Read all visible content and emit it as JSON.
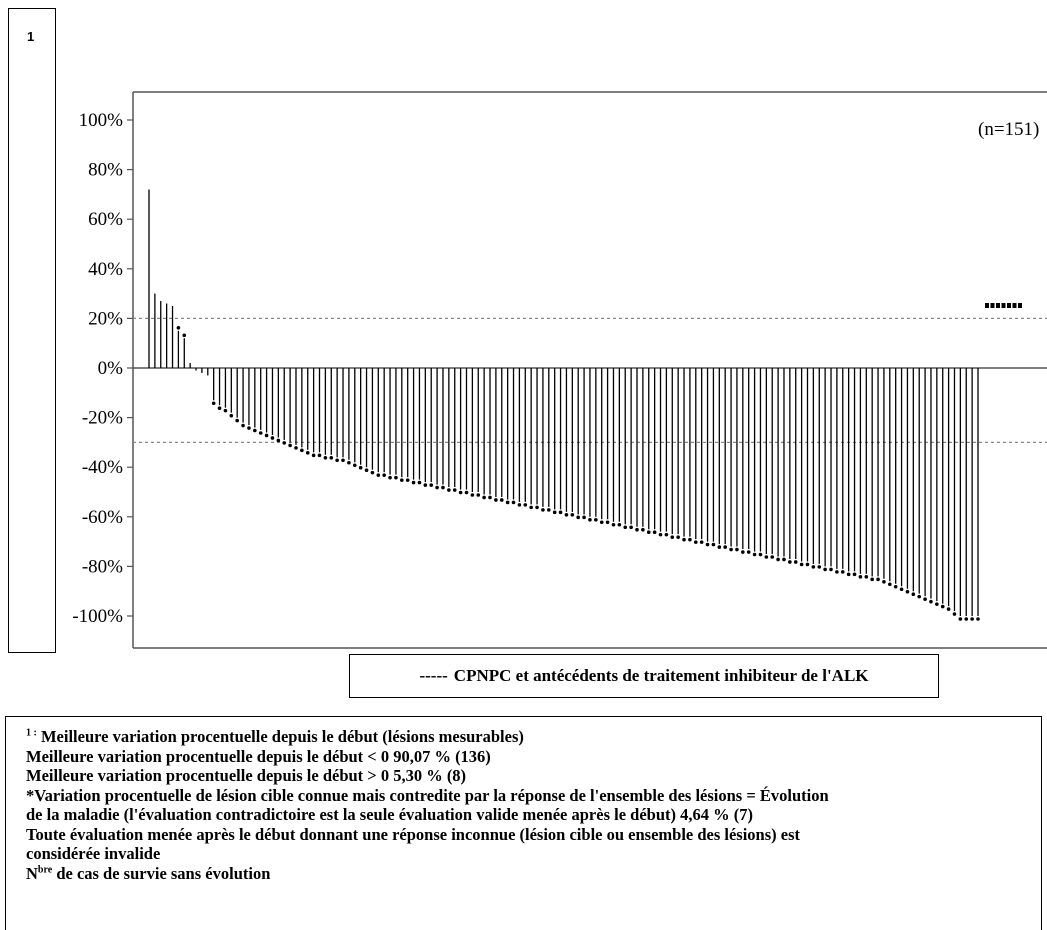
{
  "figure_number": "1",
  "legend_text": "CPNPC et antécédents de traitement inhibiteur de l'ALK",
  "legend_dash": "-----",
  "footnote": {
    "marker": "1 :",
    "line1": "Meilleure variation procentuelle depuis le début (lésions mesurables)",
    "line2": "Meilleure variation procentuelle depuis le début < 0 90,07 % (136)",
    "line3": "Meilleure variation procentuelle depuis le début > 0 5,30 % (8)",
    "line4": "*Variation procentuelle de lésion cible connue mais contredite par la réponse de l'ensemble des lésions = Évolution",
    "line5": "de la maladie (l'évaluation contradictoire est la seule évaluation valide menée après le début)  4,64 % (7)",
    "line6": "Toute évaluation menée après le début donnant une réponse inconnue (lésion cible ou ensemble des lésions) est",
    "line7": "considérée invalide",
    "line8_prefix": "N",
    "line8_sup": "bre",
    "line8_rest": " de cas de survie sans évolution"
  },
  "chart_data": {
    "type": "bar",
    "title": "",
    "annotation": "(n=151)",
    "xlabel": "",
    "ylabel": "",
    "ylim": [
      -115,
      110
    ],
    "yticks": [
      "100%",
      "80%",
      "60%",
      "40%",
      "20%",
      "0%",
      "-20%",
      "-40%",
      "-60%",
      "-80%",
      "-100%"
    ],
    "ytick_values": [
      100,
      80,
      60,
      40,
      20,
      0,
      -20,
      -40,
      -60,
      -80,
      -100
    ],
    "reference_lines": [
      20,
      -30
    ],
    "grid": false,
    "bar_color": "#000000",
    "values": [
      72,
      30,
      27,
      26,
      25,
      15,
      12,
      2,
      -1,
      -2,
      -3,
      -13,
      -15,
      -16,
      -18,
      -20,
      -22,
      -23,
      -24,
      -25,
      -26,
      -27,
      -28,
      -29,
      -30,
      -31,
      -32,
      -33,
      -34,
      -34,
      -35,
      -35,
      -36,
      -36,
      -37,
      -38,
      -39,
      -40,
      -41,
      -42,
      -42,
      -43,
      -43,
      -44,
      -44,
      -45,
      -45,
      -46,
      -46,
      -47,
      -47,
      -48,
      -48,
      -49,
      -49,
      -50,
      -50,
      -51,
      -51,
      -52,
      -52,
      -53,
      -53,
      -54,
      -54,
      -55,
      -55,
      -56,
      -56,
      -57,
      -57,
      -58,
      -58,
      -59,
      -59,
      -60,
      -60,
      -61,
      -61,
      -62,
      -62,
      -63,
      -63,
      -64,
      -64,
      -65,
      -65,
      -66,
      -66,
      -67,
      -67,
      -68,
      -68,
      -69,
      -69,
      -70,
      -70,
      -71,
      -71,
      -72,
      -72,
      -73,
      -73,
      -74,
      -74,
      -75,
      -75,
      -76,
      -76,
      -77,
      -77,
      -78,
      -78,
      -79,
      -79,
      -80,
      -80,
      -81,
      -81,
      -82,
      -82,
      -83,
      -83,
      -84,
      -84,
      -85,
      -86,
      -87,
      -88,
      -89,
      -90,
      -91,
      -92,
      -93,
      -94,
      -95,
      -96,
      -98,
      -100,
      -100,
      -100,
      -100
    ],
    "marked_points": [
      16,
      17,
      18,
      19,
      20,
      21,
      22
    ],
    "marked_value": 25
  }
}
